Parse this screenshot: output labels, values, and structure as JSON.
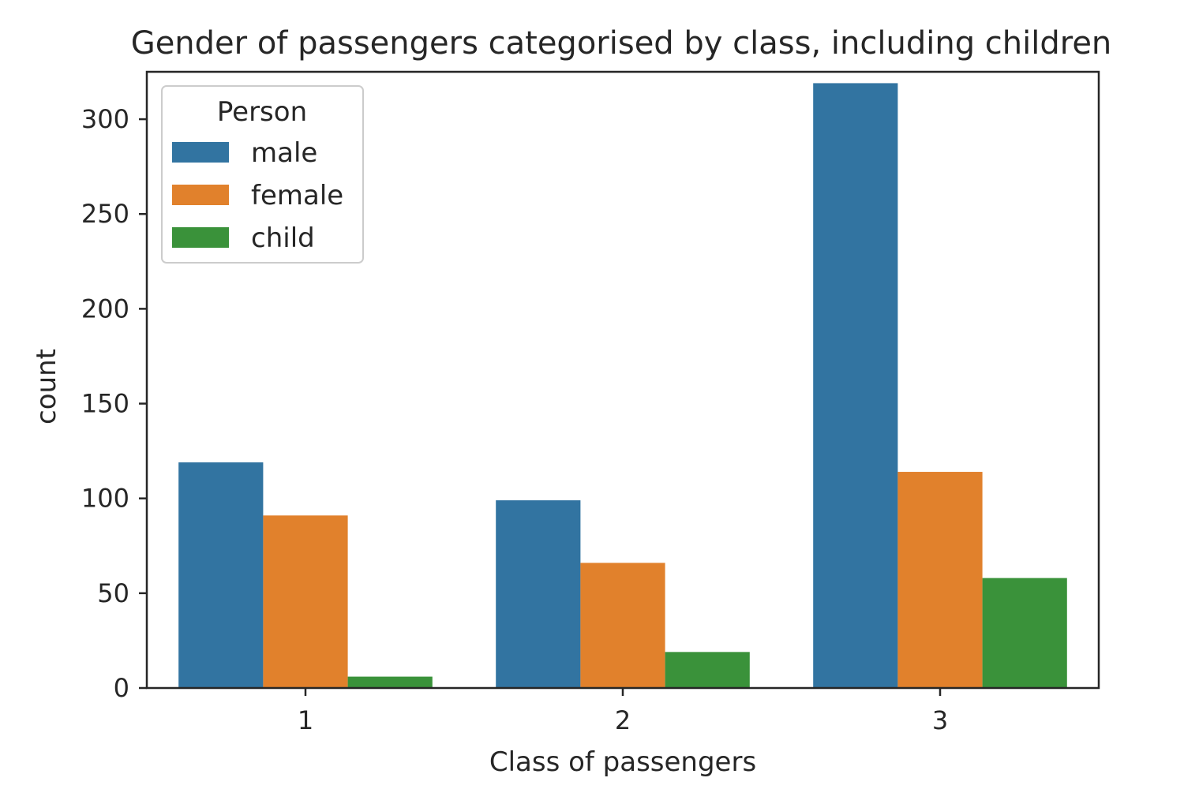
{
  "chart_data": {
    "type": "bar",
    "title": "Gender of passengers categorised by class, including children",
    "xlabel": "Class of passengers",
    "ylabel": "count",
    "categories": [
      "1",
      "2",
      "3"
    ],
    "series": [
      {
        "name": "male",
        "color": "#3274a1",
        "values": [
          119,
          99,
          319
        ]
      },
      {
        "name": "female",
        "color": "#e1812c",
        "values": [
          91,
          66,
          114
        ]
      },
      {
        "name": "child",
        "color": "#3a923a",
        "values": [
          6,
          19,
          58
        ]
      }
    ],
    "ylim": [
      0,
      325
    ],
    "yticks": [
      0,
      50,
      100,
      150,
      200,
      250,
      300
    ],
    "legend": {
      "title": "Person",
      "position": "top-left"
    },
    "grid": false
  }
}
